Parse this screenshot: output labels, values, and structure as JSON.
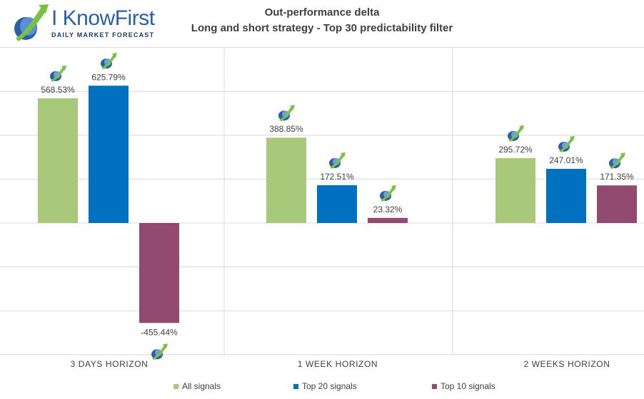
{
  "logo": {
    "name": "I KnowFirst",
    "tagline": "DAILY MARKET FORECAST"
  },
  "title": "Out-performance delta",
  "subtitle": "Long and short strategy - Top 30 predictability filter",
  "colors": {
    "All signals": "#a9c97a",
    "Top 20 signals": "#0070c0",
    "Top 10 signals": "#924a71",
    "grid": "#d9d9d9",
    "text": "#404040",
    "icon_blue": "#2a5fa8",
    "icon_green": "#7ac143"
  },
  "chart_data": {
    "type": "bar",
    "title": "Out-performance delta",
    "subtitle": "Long and short strategy - Top 30 predictability filter",
    "categories": [
      "3 DAYS HORIZON",
      "1 WEEK HORIZON",
      "2 WEEKS HORIZON"
    ],
    "series": [
      {
        "name": "All signals",
        "values": [
          568.53,
          388.85,
          295.72
        ],
        "labels": [
          "568.53%",
          "388.85%",
          "295.72%"
        ]
      },
      {
        "name": "Top 20 signals",
        "values": [
          625.79,
          172.51,
          247.01
        ],
        "labels": [
          "625.79%",
          "172.51%",
          "247.01%"
        ]
      },
      {
        "name": "Top 10 signals",
        "values": [
          -455.44,
          23.32,
          171.35
        ],
        "labels": [
          "-455.44%",
          "23.32%",
          "171.35%"
        ]
      }
    ],
    "ylim": [
      -600,
      800
    ],
    "gridlines": [
      -600,
      -400,
      -200,
      0,
      200,
      400,
      600,
      800
    ],
    "xlabel": "",
    "ylabel": "",
    "legend": "bottom",
    "grid": true
  }
}
